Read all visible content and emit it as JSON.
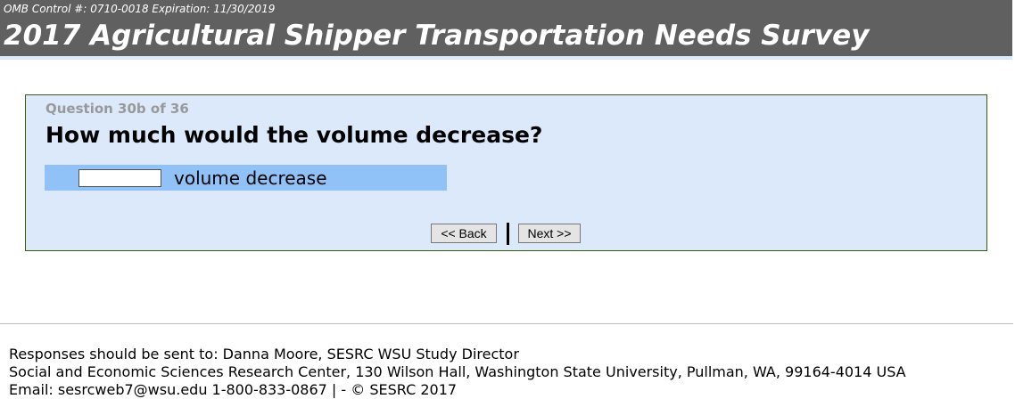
{
  "header": {
    "omb": "OMB Control #: 0710-0018 Expiration: 11/30/2019",
    "title": "2017 Agricultural Shipper Transportation Needs Survey"
  },
  "question": {
    "number": "Question 30b of 36",
    "text": "How much would the volume decrease?",
    "input_value": "",
    "unit": "volume decrease"
  },
  "nav": {
    "back": "<< Back",
    "next": "Next >>"
  },
  "footer": {
    "line1": "Responses should be sent to: Danna Moore, SESRC WSU Study Director",
    "line2": "Social and Economic Sciences Research Center, 130 Wilson Hall, Washington State University, Pullman, WA, 99164-4014 USA",
    "line3": "Email: sesrcweb7@wsu.edu 1-800-833-0867 | - © SESRC 2017"
  }
}
